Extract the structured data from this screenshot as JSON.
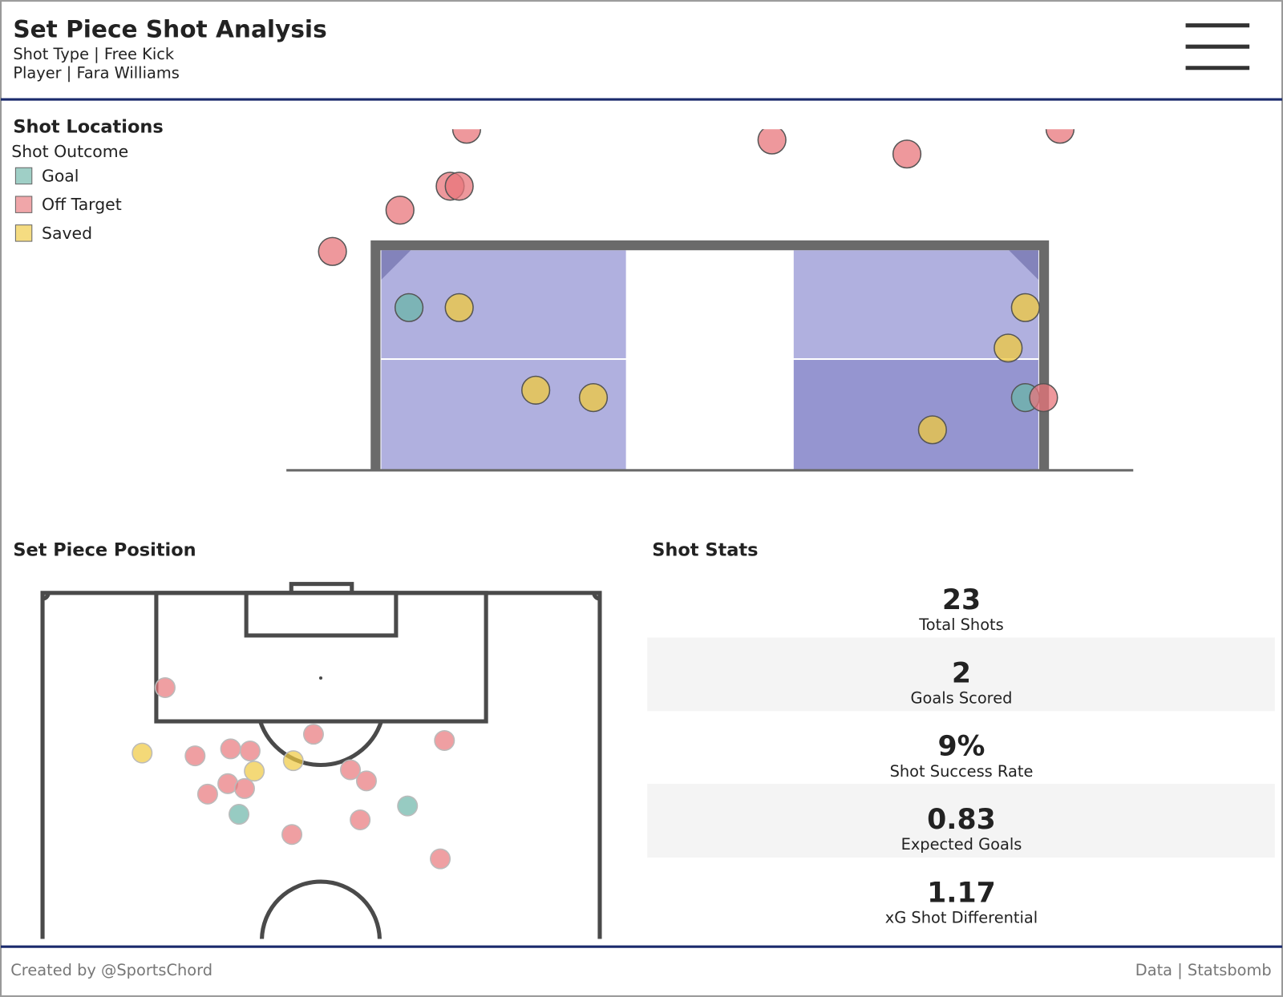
{
  "header": {
    "title": "Set Piece Shot Analysis",
    "shot_type": "Shot Type | Free Kick",
    "player": "Player | Fara Williams"
  },
  "chart_data": [
    {
      "type": "scatter",
      "title": "Shot Locations",
      "legend_title": "Shot Outcome",
      "xlim": [
        34.86,
        45.15
      ],
      "ylim": [
        0,
        4.11
      ],
      "series": [
        {
          "name": "Goal",
          "color": "#6bb5a8",
          "x": [
            36.35,
            43.84
          ],
          "values": [
            1.97,
            0.88
          ]
        },
        {
          "name": "Off Target",
          "color": "#e8767b",
          "x": [
            44.06,
            35.42,
            36.24,
            36.85,
            36.96,
            37.05,
            40.76,
            42.4,
            44.26
          ],
          "values": [
            0.88,
            2.65,
            3.15,
            3.44,
            3.44,
            4.13,
            4.0,
            3.83,
            4.13
          ]
        },
        {
          "name": "Saved",
          "color": "#f0c93e",
          "x": [
            36.96,
            37.89,
            38.59,
            43.84,
            43.63,
            42.71
          ],
          "values": [
            1.97,
            0.97,
            0.88,
            1.97,
            1.48,
            0.49
          ]
        }
      ]
    },
    {
      "type": "scatter",
      "title": "Set Piece Position",
      "xlim": [
        0,
        80
      ],
      "ylim": [
        70.3,
        120
      ],
      "series": [
        {
          "color": "#e8767b",
          "x": [
            17.6,
            21.9,
            27.0,
            29.8,
            38.9,
            57.7,
            23.7,
            26.6,
            29.0,
            44.2,
            46.5,
            35.8,
            45.6,
            57.1
          ],
          "values": [
            106.4,
            96.6,
            97.6,
            97.3,
            99.7,
            98.8,
            91.1,
            92.6,
            91.9,
            94.6,
            93.0,
            85.3,
            87.4,
            81.8
          ]
        },
        {
          "color": "#f0c93e",
          "x": [
            14.3,
            30.4,
            36.0
          ],
          "values": [
            97.0,
            94.4,
            95.9
          ]
        },
        {
          "color": "#6bb5a8",
          "x": [
            28.2,
            52.4
          ],
          "values": [
            88.2,
            89.4
          ]
        }
      ]
    }
  ],
  "stats": {
    "title": "Shot Stats",
    "items": [
      {
        "value": "23",
        "label": "Total Shots"
      },
      {
        "value": "2",
        "label": "Goals Scored"
      },
      {
        "value": "9%",
        "label": "Shot Success Rate"
      },
      {
        "value": "0.83",
        "label": "Expected Goals"
      },
      {
        "value": "1.17",
        "label": "xG Shot Differential"
      }
    ]
  },
  "footer": {
    "credit": "Created by @SportsChord",
    "source": "Data | Statsbomb"
  }
}
